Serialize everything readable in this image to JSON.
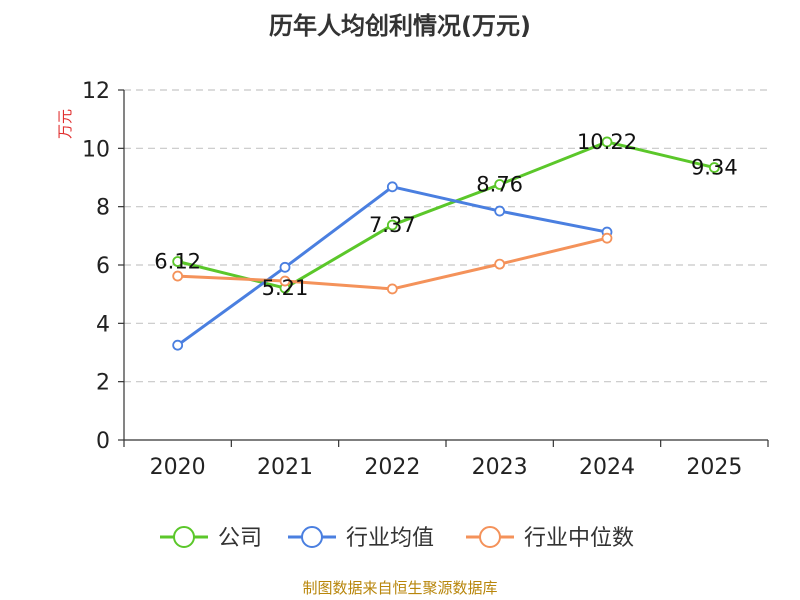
{
  "chart_data": {
    "type": "line",
    "title": "历年人均创利情况(万元)",
    "ylabel": "万元",
    "xlabel": "",
    "ylim": [
      0,
      12
    ],
    "yticks": [
      0,
      2,
      4,
      6,
      8,
      10,
      12
    ],
    "categories": [
      "2020",
      "2021",
      "2022",
      "2023",
      "2024",
      "2025"
    ],
    "grid": true,
    "legend_position": "bottom",
    "series": [
      {
        "name": "公司",
        "color": "#5bc72a",
        "values": [
          6.12,
          5.21,
          7.37,
          8.76,
          10.22,
          9.34
        ],
        "labels": [
          "6.12",
          "5.21",
          "7.37",
          "8.76",
          "10.22",
          "9.34"
        ]
      },
      {
        "name": "行业均值",
        "color": "#4a7fe0",
        "values": [
          3.25,
          5.92,
          8.68,
          7.85,
          7.13,
          null
        ]
      },
      {
        "name": "行业中位数",
        "color": "#f4925a",
        "values": [
          5.62,
          5.45,
          5.18,
          6.03,
          6.92,
          null
        ]
      }
    ],
    "source": "制图数据来自恒生聚源数据库"
  }
}
